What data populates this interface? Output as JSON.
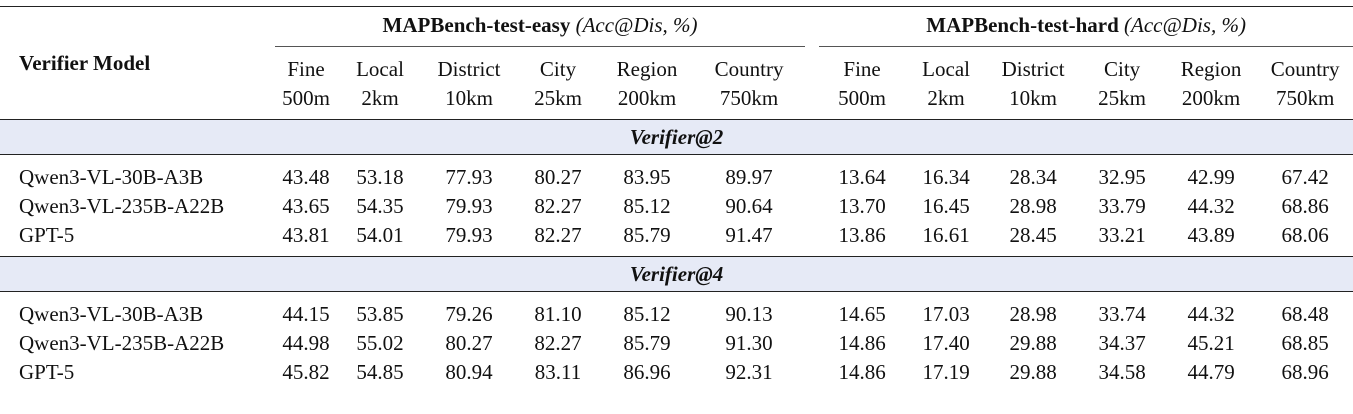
{
  "table": {
    "row_header": "Verifier Model",
    "groups": [
      {
        "name": "MAPBench-test-easy",
        "metric": "(Acc@Dis, %)",
        "columns": [
          {
            "name": "Fine",
            "threshold": "500m"
          },
          {
            "name": "Local",
            "threshold": "2km"
          },
          {
            "name": "District",
            "threshold": "10km"
          },
          {
            "name": "City",
            "threshold": "25km"
          },
          {
            "name": "Region",
            "threshold": "200km"
          },
          {
            "name": "Country",
            "threshold": "750km"
          }
        ]
      },
      {
        "name": "MAPBench-test-hard",
        "metric": "(Acc@Dis, %)",
        "columns": [
          {
            "name": "Fine",
            "threshold": "500m"
          },
          {
            "name": "Local",
            "threshold": "2km"
          },
          {
            "name": "District",
            "threshold": "10km"
          },
          {
            "name": "City",
            "threshold": "25km"
          },
          {
            "name": "Region",
            "threshold": "200km"
          },
          {
            "name": "Country",
            "threshold": "750km"
          }
        ]
      }
    ],
    "sections": [
      {
        "title": "Verifier@2",
        "rows": [
          {
            "model": "Qwen3-VL-30B-A3B",
            "values": [
              "43.48",
              "53.18",
              "77.93",
              "80.27",
              "83.95",
              "89.97",
              "13.64",
              "16.34",
              "28.34",
              "32.95",
              "42.99",
              "67.42"
            ]
          },
          {
            "model": "Qwen3-VL-235B-A22B",
            "values": [
              "43.65",
              "54.35",
              "79.93",
              "82.27",
              "85.12",
              "90.64",
              "13.70",
              "16.45",
              "28.98",
              "33.79",
              "44.32",
              "68.86"
            ]
          },
          {
            "model": "GPT-5",
            "values": [
              "43.81",
              "54.01",
              "79.93",
              "82.27",
              "85.79",
              "91.47",
              "13.86",
              "16.61",
              "28.45",
              "33.21",
              "43.89",
              "68.06"
            ]
          }
        ]
      },
      {
        "title": "Verifier@4",
        "rows": [
          {
            "model": "Qwen3-VL-30B-A3B",
            "values": [
              "44.15",
              "53.85",
              "79.26",
              "81.10",
              "85.12",
              "90.13",
              "14.65",
              "17.03",
              "28.98",
              "33.74",
              "44.32",
              "68.48"
            ]
          },
          {
            "model": "Qwen3-VL-235B-A22B",
            "values": [
              "44.98",
              "55.02",
              "80.27",
              "82.27",
              "85.79",
              "91.30",
              "14.86",
              "17.40",
              "29.88",
              "34.37",
              "45.21",
              "68.85"
            ]
          },
          {
            "model": "GPT-5",
            "values": [
              "45.82",
              "54.85",
              "80.94",
              "83.11",
              "86.96",
              "92.31",
              "14.86",
              "17.19",
              "29.88",
              "34.58",
              "44.79",
              "68.96"
            ]
          }
        ]
      }
    ]
  }
}
